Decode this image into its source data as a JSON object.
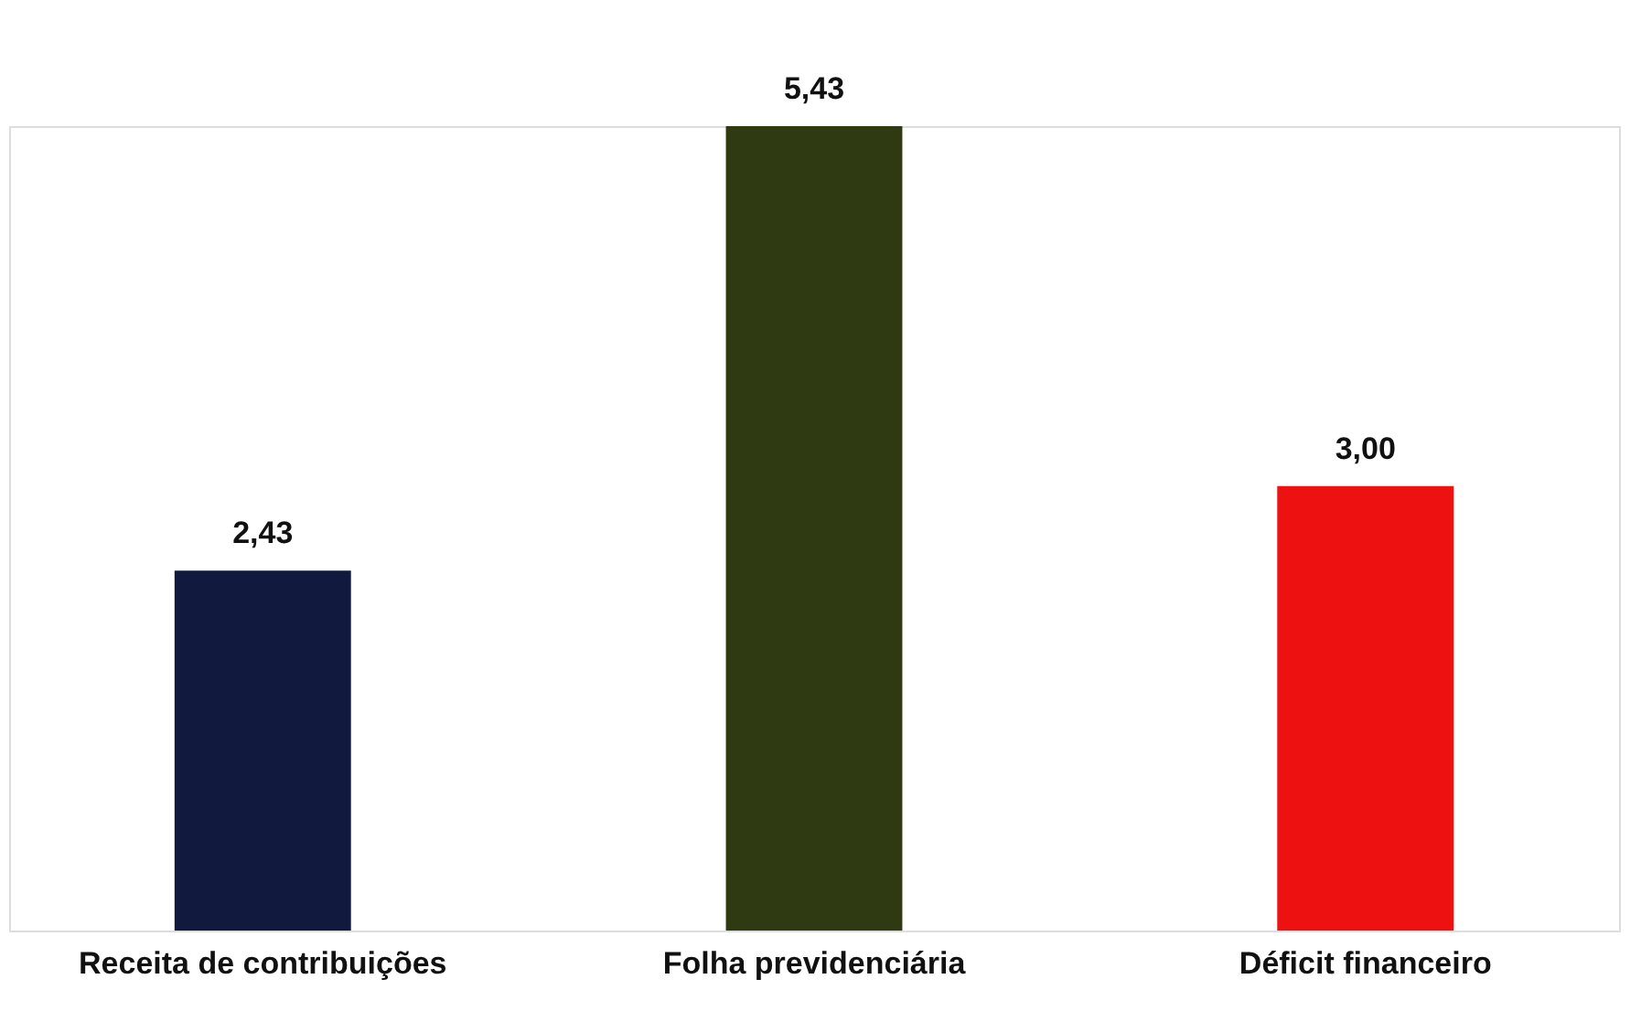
{
  "chart_data": {
    "type": "bar",
    "categories": [
      "Receita de contribuições",
      "Folha previdenciária",
      "Déficit financeiro"
    ],
    "values": [
      2.43,
      5.43,
      3.0
    ],
    "colors": [
      "#111a3e",
      "#2f3a12",
      "#ee1111"
    ],
    "value_labels": [
      "2,43",
      "5,43",
      "3,00"
    ],
    "grid": false
  }
}
